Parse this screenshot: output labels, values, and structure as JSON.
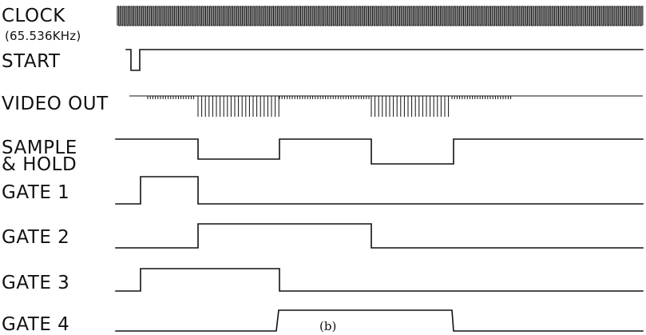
{
  "labels": {
    "clock": "CLOCK",
    "clock_freq": "(65.536KHz)",
    "start": "START",
    "video_out": "VIDEO OUT",
    "sample_line1": "SAMPLE",
    "sample_line2": "& HOLD",
    "gate1": "GATE 1",
    "gate2": "GATE 2",
    "gate3": "GATE 3",
    "gate4": "GATE 4"
  },
  "caption": "(b)",
  "colors": {
    "ink": "#111111",
    "background": "#ffffff"
  }
}
